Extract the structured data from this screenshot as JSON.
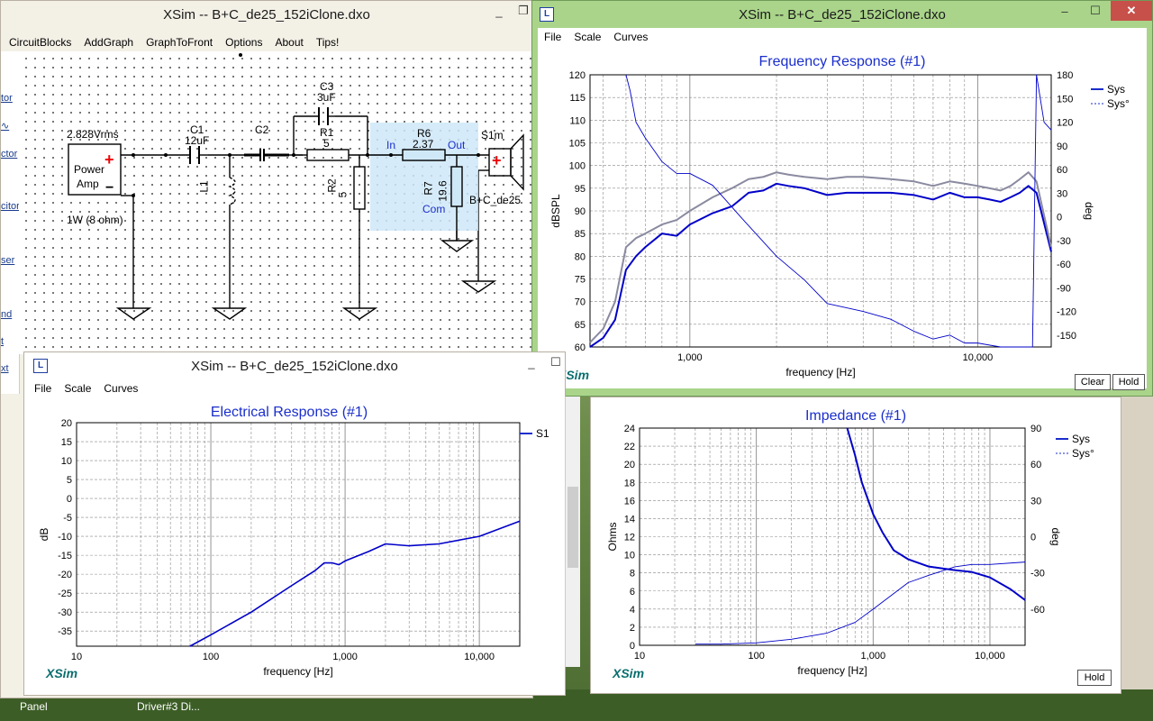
{
  "colors": {
    "accent_blue": "#1a2ecb",
    "sys_curve": "#0000c8",
    "gray_curve": "#8a8aa0",
    "xsim_brand": "#0b6e6e",
    "win_green": "#a9d48a"
  },
  "main_window": {
    "title": "XSim -- B+C_de25_152iClone.dxo",
    "menu": [
      "CircuitBlocks",
      "AddGraph",
      "GraphToFront",
      "Options",
      "About",
      "Tips!"
    ],
    "toolbox": [
      "tor",
      "ctor",
      "citor",
      "ser",
      "nd",
      "t",
      "xt"
    ],
    "circuit": {
      "source_voltage": "2.828Vrms",
      "source_label_1": "Power",
      "source_label_2": "Amp",
      "source_rating": "1W (8 ohm)",
      "c1_name": "C1",
      "c1_value": "12uF",
      "c2_name": "C2",
      "c3_name": "C3",
      "c3_value": "3uF",
      "r1_name": "R1",
      "r1_value": "5",
      "l1_name": "L1",
      "r2_name": "R2",
      "r2_value": "5",
      "r6_name": "R6",
      "r6_value": "2.37",
      "r7_name": "R7",
      "r7_value": "19.6",
      "pad_in": "In",
      "pad_out": "Out",
      "pad_com": "Com",
      "driver_name": "S1m",
      "driver_label": "B+C_de25",
      "plus_sign": "+",
      "minus_sign": "−"
    }
  },
  "freq_window": {
    "title": "XSim -- B+C_de25_152iClone.dxo",
    "menu": [
      "File",
      "Scale",
      "Curves"
    ],
    "plot_title": "Frequency Response (#1)",
    "y_label": "dBSPL",
    "y2_label": "deg",
    "x_label": "frequency [Hz]",
    "y_ticks": [
      "120",
      "115",
      "110",
      "105",
      "100",
      "95",
      "90",
      "85",
      "80",
      "75",
      "70",
      "65",
      "60"
    ],
    "y2_ticks": [
      "180",
      "150",
      "120",
      "90",
      "60",
      "30",
      "0",
      "-30",
      "-60",
      "-90",
      "-120",
      "-150"
    ],
    "x_ticks": [
      "1,000",
      "10,000"
    ],
    "legend": [
      "Sys",
      "Sys°"
    ],
    "brand": "XSim",
    "buttons": [
      "Clear",
      "Hold"
    ]
  },
  "elec_window": {
    "title": "XSim -- B+C_de25_152iClone.dxo",
    "menu": [
      "File",
      "Scale",
      "Curves"
    ],
    "plot_title": "Electrical Response (#1)",
    "y_label": "dB",
    "x_label": "frequency [Hz]",
    "y_ticks": [
      "20",
      "15",
      "10",
      "5",
      "0",
      "-5",
      "-10",
      "-15",
      "-20",
      "-25",
      "-30",
      "-35"
    ],
    "x_ticks": [
      "10",
      "100",
      "1,000",
      "10,000"
    ],
    "legend": [
      "S1"
    ],
    "brand": "XSim"
  },
  "imp_window": {
    "plot_title": "Impedance (#1)",
    "y_label": "Ohms",
    "y2_label": "deg",
    "x_label": "frequency [Hz]",
    "y_ticks": [
      "24",
      "22",
      "20",
      "18",
      "16",
      "14",
      "12",
      "10",
      "8",
      "6",
      "4",
      "2",
      "0"
    ],
    "y2_ticks": [
      "90",
      "60",
      "30",
      "0",
      "-30",
      "-60"
    ],
    "x_ticks": [
      "10",
      "100",
      "1,000",
      "10,000"
    ],
    "legend": [
      "Sys",
      "Sys°"
    ],
    "brand": "XSim",
    "buttons": [
      "Hold"
    ]
  },
  "taskbar": {
    "items": [
      "Panel",
      "Driver#3 Di..."
    ]
  },
  "chart_data": [
    {
      "type": "line",
      "title": "Frequency Response (#1)",
      "xlabel": "frequency [Hz]",
      "ylabel": "dBSPL",
      "y2label": "deg",
      "xscale": "log",
      "xlim": [
        450,
        18000
      ],
      "ylim": [
        60,
        120
      ],
      "y2lim": [
        -165,
        180
      ],
      "legend_position": "top-right",
      "series": [
        {
          "name": "Sys",
          "axis": "left",
          "x": [
            450,
            500,
            550,
            600,
            650,
            700,
            800,
            900,
            1000,
            1200,
            1400,
            1600,
            1800,
            2000,
            2200,
            2500,
            3000,
            3500,
            4000,
            5000,
            6000,
            7000,
            8000,
            9000,
            10000,
            11000,
            12000,
            13000,
            14000,
            15000,
            16000,
            18000
          ],
          "y": [
            60,
            62,
            66,
            77,
            80,
            82,
            85,
            84.5,
            87,
            89.5,
            91,
            94,
            94.5,
            96,
            95.5,
            95,
            93.5,
            94,
            94,
            94,
            93.5,
            92.5,
            94,
            93,
            93,
            92.5,
            92,
            93,
            94,
            95.5,
            94,
            81
          ]
        },
        {
          "axis": "left",
          "x": [
            450,
            500,
            550,
            600,
            650,
            700,
            800,
            900,
            1000,
            1200,
            1400,
            1600,
            1800,
            2000,
            2200,
            2500,
            3000,
            3500,
            4000,
            5000,
            6000,
            7000,
            8000,
            9000,
            10000,
            11000,
            12000,
            13000,
            14000,
            15000,
            16000,
            18000
          ],
          "y": [
            61,
            64,
            70,
            82,
            84,
            85,
            87,
            88,
            90,
            93,
            95,
            97,
            97.5,
            98.5,
            98,
            97.5,
            97,
            97.5,
            97.5,
            97,
            96.5,
            95.5,
            96.5,
            96,
            95.5,
            95,
            94.5,
            95.5,
            97,
            98.5,
            96.5,
            82
          ]
        },
        {
          "name": "Sys°",
          "axis": "right",
          "x": [
            600,
            620,
            650,
            700,
            800,
            900,
            1000,
            1200,
            1500,
            2000,
            2500,
            3000,
            4000,
            5000,
            6000,
            7000,
            8000,
            9000,
            10000,
            12000,
            14000,
            15500,
            16000,
            17000,
            18000
          ],
          "y": [
            180,
            160,
            120,
            100,
            70,
            55,
            55,
            40,
            0,
            -50,
            -80,
            -110,
            -120,
            -130,
            -145,
            -155,
            -150,
            -160,
            -160,
            -165,
            -165,
            -170,
            180,
            120,
            110
          ]
        }
      ]
    },
    {
      "type": "line",
      "title": "Electrical Response (#1)",
      "xlabel": "frequency [Hz]",
      "ylabel": "dB",
      "xscale": "log",
      "xlim": [
        10,
        20000
      ],
      "ylim": [
        -39,
        20
      ],
      "legend_position": "top-right",
      "series": [
        {
          "name": "S1",
          "x": [
            70,
            100,
            200,
            400,
            600,
            700,
            800,
            900,
            1000,
            1500,
            2000,
            3000,
            5000,
            10000,
            20000
          ],
          "y": [
            -39,
            -36,
            -30,
            -23,
            -19,
            -17,
            -17,
            -17.5,
            -16.5,
            -14,
            -12,
            -12.5,
            -12,
            -10,
            -6
          ]
        }
      ]
    },
    {
      "type": "line",
      "title": "Impedance (#1)",
      "xlabel": "frequency [Hz]",
      "ylabel": "Ohms",
      "y2label": "deg",
      "xscale": "log",
      "xlim": [
        10,
        20000
      ],
      "ylim": [
        0,
        24
      ],
      "y2lim": [
        -90,
        90
      ],
      "legend_position": "top-right",
      "series": [
        {
          "name": "Sys",
          "axis": "left",
          "x": [
            600,
            700,
            800,
            1000,
            1200,
            1500,
            2000,
            3000,
            5000,
            7000,
            10000,
            15000,
            20000
          ],
          "y": [
            24,
            21,
            18,
            14.5,
            12.5,
            10.5,
            9.5,
            8.7,
            8.3,
            8.1,
            7.5,
            6.2,
            5
          ]
        },
        {
          "name": "Sys°",
          "axis": "right",
          "x": [
            30,
            50,
            100,
            200,
            400,
            700,
            1000,
            2000,
            3000,
            5000,
            7000,
            10000,
            20000
          ],
          "y": [
            -89,
            -89,
            -88,
            -85,
            -80,
            -71,
            -60,
            -38,
            -32,
            -25,
            -23,
            -23,
            -21
          ]
        }
      ]
    }
  ]
}
